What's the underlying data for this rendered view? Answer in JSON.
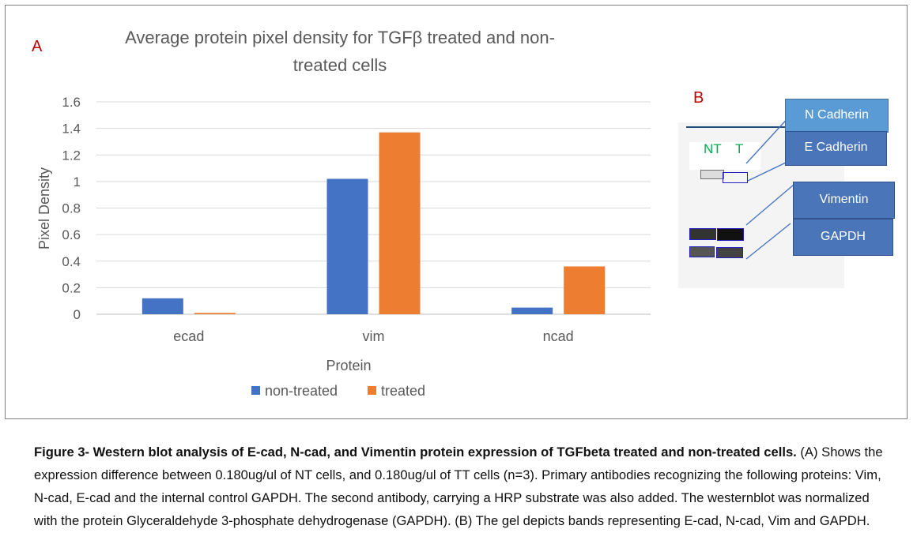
{
  "panel_a_letter": "A",
  "panel_b_letter": "B",
  "chart_data": {
    "type": "bar",
    "title_line1": "Average protein pixel density for TGFβ treated and non-",
    "title_line2": "treated cells",
    "xlabel": "Protein",
    "ylabel": "Pixel Density",
    "categories": [
      "ecad",
      "vim",
      "ncad"
    ],
    "ylim": [
      0,
      1.6
    ],
    "yticks": [
      "0",
      "0.2",
      "0.4",
      "0.6",
      "0.8",
      "1",
      "1.2",
      "1.4",
      "1.6"
    ],
    "grid": true,
    "legend_position": "bottom",
    "series": [
      {
        "name": "non-treated",
        "color": "#4472c4",
        "values": [
          0.12,
          1.02,
          0.05
        ]
      },
      {
        "name": "treated",
        "color": "#ed7d31",
        "values": [
          0.01,
          1.37,
          0.36
        ]
      }
    ]
  },
  "blot": {
    "lane_labels": [
      "NT",
      "T"
    ],
    "lane_label_color": "#00b050",
    "labels": [
      "N Cadherin",
      "E Cadherin",
      "Vimentin",
      "GAPDH"
    ]
  },
  "caption": {
    "bold": "Figure 3- Western blot analysis of E-cad, N-cad, and Vimentin protein expression of TGFbeta treated and non-treated cells.",
    "body": " (A) Shows the expression difference between  0.180ug/ul of NT cells, and 0.180ug/ul of TT cells (n=3). Primary antibodies recognizing the following proteins: Vim, N-cad, E-cad and the internal control GAPDH. The second antibody, carrying a HRP substrate was also added. The westernblot was normalized with the protein Glyceraldehyde 3-phosphate dehydrogenase (GAPDH). (B) The gel depicts bands representing E-cad, N-cad, Vim and GAPDH."
  }
}
